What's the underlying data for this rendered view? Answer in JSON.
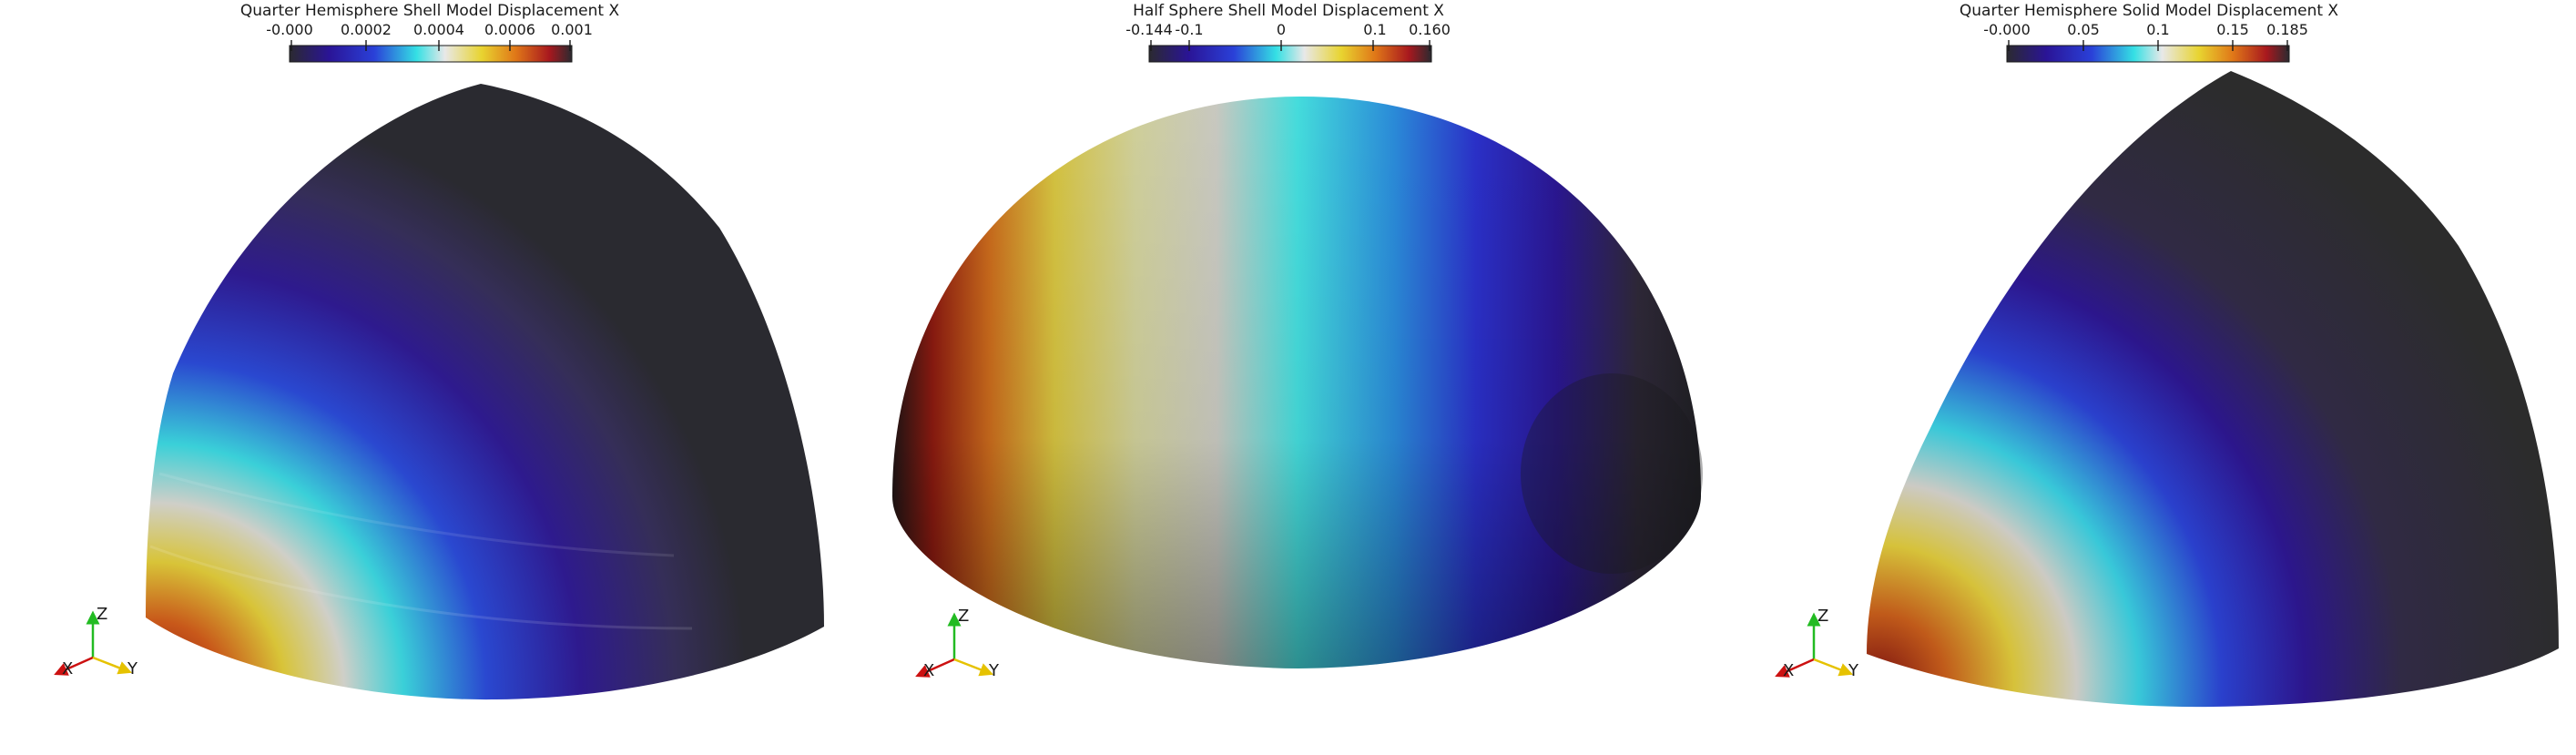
{
  "panels": [
    {
      "colorbar": {
        "title": "Quarter Hemisphere Shell Model Displacement X",
        "tick_labels": [
          "-0.000",
          "0.0002",
          "0.0004",
          "0.0006",
          "0.001"
        ]
      },
      "axes": {
        "x": "X",
        "y": "Y",
        "z": "Z"
      }
    },
    {
      "colorbar": {
        "title": "Half Sphere Shell Model Displacement X",
        "tick_labels": [
          "-0.144",
          "-0.1",
          "0",
          "0.1",
          "0.160"
        ]
      },
      "axes": {
        "x": "X",
        "y": "Y",
        "z": "Z"
      }
    },
    {
      "colorbar": {
        "title": "Quarter Hemisphere Solid Model Displacement X",
        "tick_labels": [
          "-0.000",
          "0.05",
          "0.1",
          "0.15",
          "0.185"
        ]
      },
      "axes": {
        "x": "X",
        "y": "Y",
        "z": "Z"
      }
    }
  ],
  "colors": {
    "dark": "#2b2a30",
    "indigo": "#2a1496",
    "blue": "#2a40d8",
    "cyan": "#34e0e4",
    "white": "#e8e8e8",
    "yellow": "#e8d430",
    "orange": "#e07818",
    "red": "#a8181e",
    "axis_x": "#cc1111",
    "axis_y": "#e6c200",
    "axis_z": "#22bb22"
  }
}
